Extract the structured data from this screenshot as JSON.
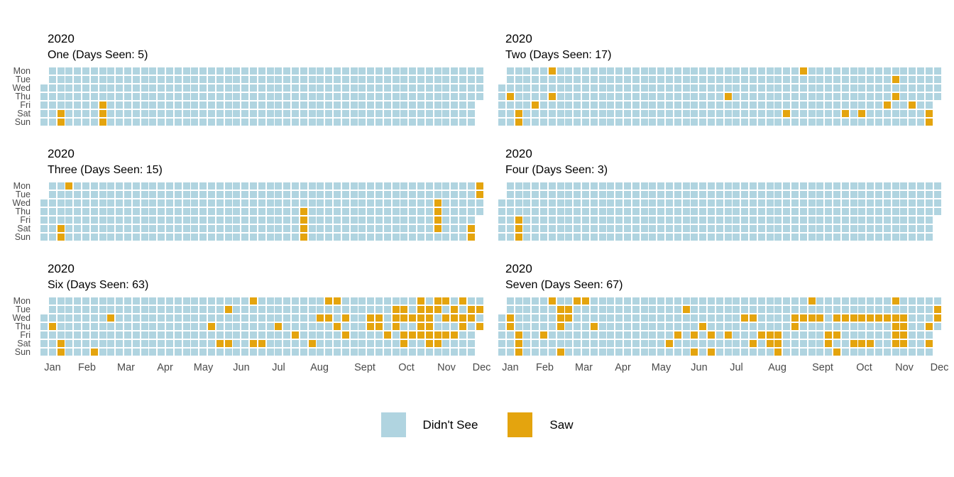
{
  "figure_title": "",
  "weekdays": [
    "Mon",
    "Tue",
    "Wed",
    "Thu",
    "Fri",
    "Sat",
    "Sun"
  ],
  "months": [
    "Jan",
    "Feb",
    "Mar",
    "Apr",
    "May",
    "Jun",
    "Jul",
    "Aug",
    "Sept",
    "Oct",
    "Nov",
    "Dec"
  ],
  "colors": {
    "didnt_see": "#b0d4e0",
    "saw": "#e4a40e",
    "axis_text": "#4a4a4a",
    "title_text": "#000000",
    "background": "#ffffff"
  },
  "legend": {
    "items": [
      {
        "label": "Didn't See",
        "color_key": "didnt_see",
        "color": "#b0d4e0"
      },
      {
        "label": "Saw",
        "color_key": "saw",
        "color": "#e4a40e"
      }
    ]
  },
  "chart_data": {
    "type": "heatmap",
    "subtype": "calendar-heatmap",
    "year": 2020,
    "x_axis": "week of year (0-52, weeks start Monday; Jan 1 2020 = Wednesday so week 0 has only Wed-Sun, week 52 only Mon-Thu)",
    "y_axis": [
      "Mon",
      "Tue",
      "Wed",
      "Thu",
      "Fri",
      "Sat",
      "Sun"
    ],
    "cell_values": {
      "0": "Didn't See",
      "1": "Saw"
    },
    "weeks_per_year": 53,
    "panels": [
      {
        "year_label": "2020",
        "name": "One",
        "days_seen": 5,
        "title": "One (Days Seen: 5)",
        "saw_cells": [
          [
            2,
            5
          ],
          [
            2,
            6
          ],
          [
            7,
            4
          ],
          [
            7,
            5
          ],
          [
            7,
            6
          ]
        ]
      },
      {
        "year_label": "2020",
        "name": "Two",
        "days_seen": 17,
        "title": "Two (Days Seen: 17)",
        "saw_cells": [
          [
            6,
            0
          ],
          [
            36,
            0
          ],
          [
            47,
            1
          ],
          [
            1,
            3
          ],
          [
            6,
            3
          ],
          [
            27,
            3
          ],
          [
            47,
            3
          ],
          [
            4,
            4
          ],
          [
            46,
            4
          ],
          [
            49,
            4
          ],
          [
            2,
            5
          ],
          [
            34,
            5
          ],
          [
            41,
            5
          ],
          [
            43,
            5
          ],
          [
            51,
            5
          ],
          [
            2,
            6
          ],
          [
            51,
            6
          ]
        ]
      },
      {
        "year_label": "2020",
        "name": "Three",
        "days_seen": 15,
        "title": "Three (Days Seen: 15)",
        "saw_cells": [
          [
            3,
            0
          ],
          [
            52,
            0
          ],
          [
            52,
            1
          ],
          [
            47,
            2
          ],
          [
            31,
            3
          ],
          [
            47,
            3
          ],
          [
            31,
            4
          ],
          [
            47,
            4
          ],
          [
            2,
            5
          ],
          [
            31,
            5
          ],
          [
            47,
            5
          ],
          [
            51,
            5
          ],
          [
            2,
            6
          ],
          [
            31,
            6
          ],
          [
            51,
            6
          ]
        ]
      },
      {
        "year_label": "2020",
        "name": "Four",
        "days_seen": 3,
        "title": "Four (Days Seen: 3)",
        "saw_cells": [
          [
            2,
            4
          ],
          [
            2,
            5
          ],
          [
            2,
            6
          ]
        ]
      },
      {
        "year_label": "2020",
        "name": "Six",
        "days_seen": 63,
        "title": "Six (Days Seen: 63)",
        "saw_cells": [
          [
            25,
            0
          ],
          [
            34,
            0
          ],
          [
            35,
            0
          ],
          [
            45,
            0
          ],
          [
            47,
            0
          ],
          [
            48,
            0
          ],
          [
            50,
            0
          ],
          [
            22,
            1
          ],
          [
            42,
            1
          ],
          [
            43,
            1
          ],
          [
            45,
            1
          ],
          [
            46,
            1
          ],
          [
            47,
            1
          ],
          [
            49,
            1
          ],
          [
            51,
            1
          ],
          [
            52,
            1
          ],
          [
            8,
            2
          ],
          [
            33,
            2
          ],
          [
            34,
            2
          ],
          [
            36,
            2
          ],
          [
            39,
            2
          ],
          [
            40,
            2
          ],
          [
            42,
            2
          ],
          [
            43,
            2
          ],
          [
            44,
            2
          ],
          [
            45,
            2
          ],
          [
            46,
            2
          ],
          [
            48,
            2
          ],
          [
            49,
            2
          ],
          [
            50,
            2
          ],
          [
            51,
            2
          ],
          [
            1,
            3
          ],
          [
            20,
            3
          ],
          [
            28,
            3
          ],
          [
            35,
            3
          ],
          [
            39,
            3
          ],
          [
            40,
            3
          ],
          [
            42,
            3
          ],
          [
            45,
            3
          ],
          [
            46,
            3
          ],
          [
            50,
            3
          ],
          [
            52,
            3
          ],
          [
            30,
            4
          ],
          [
            36,
            4
          ],
          [
            41,
            4
          ],
          [
            43,
            4
          ],
          [
            44,
            4
          ],
          [
            45,
            4
          ],
          [
            46,
            4
          ],
          [
            47,
            4
          ],
          [
            48,
            4
          ],
          [
            49,
            4
          ],
          [
            2,
            5
          ],
          [
            21,
            5
          ],
          [
            22,
            5
          ],
          [
            25,
            5
          ],
          [
            26,
            5
          ],
          [
            32,
            5
          ],
          [
            43,
            5
          ],
          [
            46,
            5
          ],
          [
            47,
            5
          ],
          [
            2,
            6
          ],
          [
            6,
            6
          ]
        ]
      },
      {
        "year_label": "2020",
        "name": "Seven",
        "days_seen": 67,
        "title": "Seven (Days Seen: 67)",
        "saw_cells": [
          [
            6,
            0
          ],
          [
            9,
            0
          ],
          [
            10,
            0
          ],
          [
            37,
            0
          ],
          [
            47,
            0
          ],
          [
            7,
            1
          ],
          [
            8,
            1
          ],
          [
            22,
            1
          ],
          [
            52,
            1
          ],
          [
            1,
            2
          ],
          [
            7,
            2
          ],
          [
            8,
            2
          ],
          [
            29,
            2
          ],
          [
            30,
            2
          ],
          [
            35,
            2
          ],
          [
            36,
            2
          ],
          [
            37,
            2
          ],
          [
            38,
            2
          ],
          [
            40,
            2
          ],
          [
            41,
            2
          ],
          [
            42,
            2
          ],
          [
            43,
            2
          ],
          [
            44,
            2
          ],
          [
            45,
            2
          ],
          [
            46,
            2
          ],
          [
            47,
            2
          ],
          [
            48,
            2
          ],
          [
            52,
            2
          ],
          [
            1,
            3
          ],
          [
            7,
            3
          ],
          [
            11,
            3
          ],
          [
            24,
            3
          ],
          [
            35,
            3
          ],
          [
            47,
            3
          ],
          [
            48,
            3
          ],
          [
            51,
            3
          ],
          [
            2,
            4
          ],
          [
            5,
            4
          ],
          [
            21,
            4
          ],
          [
            23,
            4
          ],
          [
            25,
            4
          ],
          [
            27,
            4
          ],
          [
            31,
            4
          ],
          [
            32,
            4
          ],
          [
            33,
            4
          ],
          [
            39,
            4
          ],
          [
            40,
            4
          ],
          [
            47,
            4
          ],
          [
            48,
            4
          ],
          [
            2,
            5
          ],
          [
            20,
            5
          ],
          [
            30,
            5
          ],
          [
            32,
            5
          ],
          [
            33,
            5
          ],
          [
            39,
            5
          ],
          [
            42,
            5
          ],
          [
            43,
            5
          ],
          [
            44,
            5
          ],
          [
            47,
            5
          ],
          [
            48,
            5
          ],
          [
            51,
            5
          ],
          [
            2,
            6
          ],
          [
            7,
            6
          ],
          [
            23,
            6
          ],
          [
            25,
            6
          ],
          [
            33,
            6
          ],
          [
            40,
            6
          ]
        ]
      }
    ]
  }
}
